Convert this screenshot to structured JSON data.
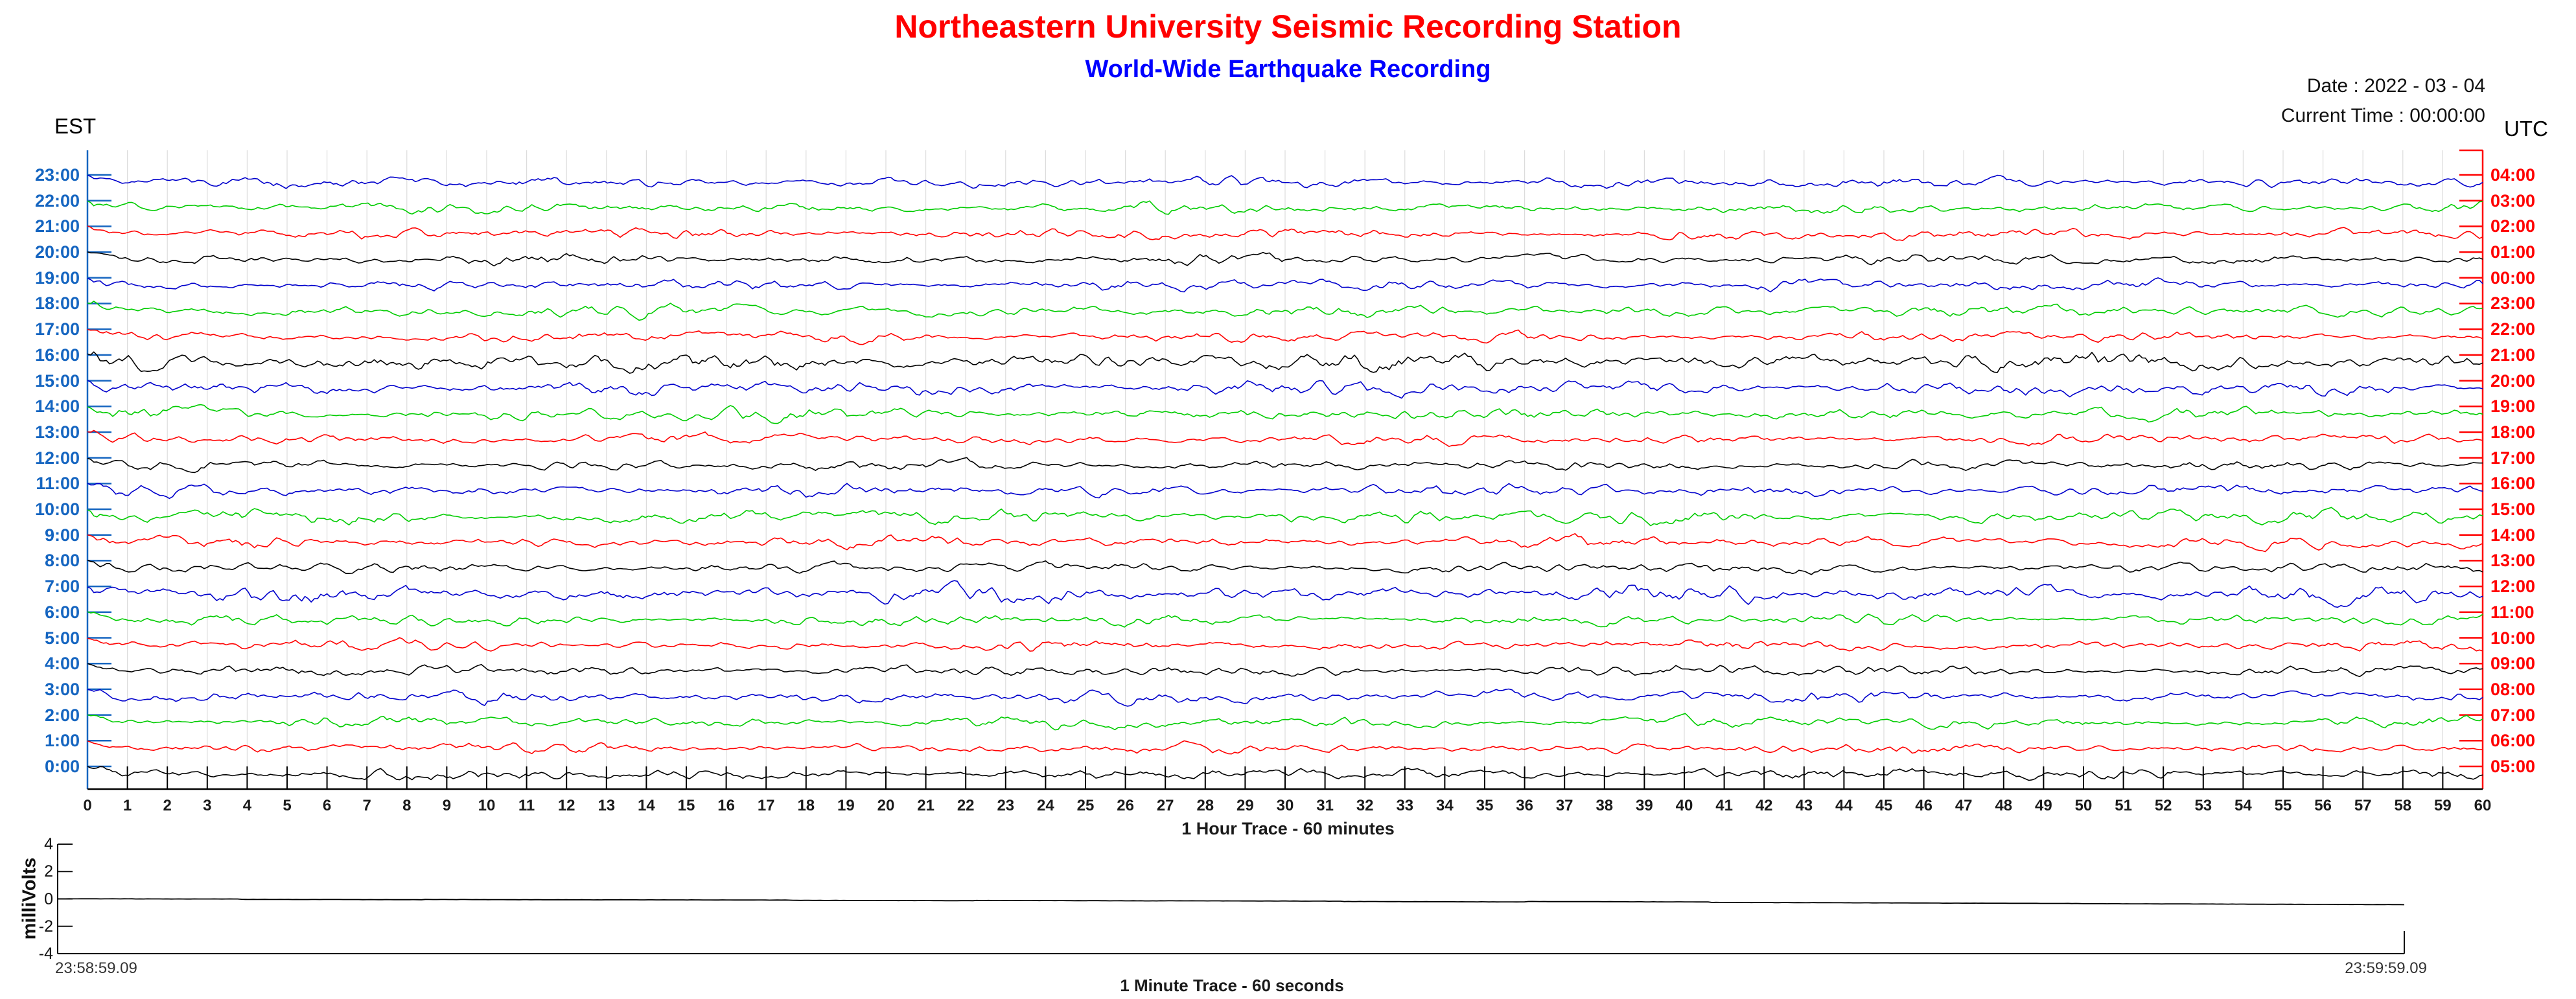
{
  "header": {
    "title": "Northeastern University Seismic Recording Station",
    "subtitle": "World-Wide Earthquake Recording",
    "date_label": "Date : 2022 - 03 - 04",
    "current_time_label": "Current Time : 00:00:00",
    "left_tz": "EST",
    "right_tz": "UTC"
  },
  "colors": {
    "title": "#FF0000",
    "subtitle": "#0000FF",
    "est_axis": "#1565C0",
    "utc_axis": "#FF0000",
    "grid": "#DCDCDC",
    "x_axis": "#000000"
  },
  "chart_data": {
    "type": "line",
    "title": "24-hour helicorder, one trace per hour",
    "x": {
      "label": "1 Hour Trace - 60 minutes",
      "min": 0,
      "max": 60,
      "tick_step": 1,
      "tick_labels": [
        "0",
        "1",
        "2",
        "3",
        "4",
        "5",
        "6",
        "7",
        "8",
        "9",
        "10",
        "11",
        "12",
        "13",
        "14",
        "15",
        "16",
        "17",
        "18",
        "19",
        "20",
        "21",
        "22",
        "23",
        "24",
        "25",
        "26",
        "27",
        "28",
        "29",
        "30",
        "31",
        "32",
        "33",
        "34",
        "35",
        "36",
        "37",
        "38",
        "39",
        "40",
        "41",
        "42",
        "43",
        "44",
        "45",
        "46",
        "47",
        "48",
        "49",
        "50",
        "51",
        "52",
        "53",
        "54",
        "55",
        "56",
        "57",
        "58",
        "59",
        "60"
      ]
    },
    "y_left_label_color": "#1565C0",
    "y_right_label_color": "#FF0000",
    "rows": [
      {
        "est": "23:00",
        "utc": "04:00",
        "color": "#0000CC",
        "amp": 1.0,
        "seed": 11
      },
      {
        "est": "22:00",
        "utc": "03:00",
        "color": "#00CC00",
        "amp": 0.95,
        "seed": 12
      },
      {
        "est": "21:00",
        "utc": "02:00",
        "color": "#FF0000",
        "amp": 1.0,
        "seed": 13
      },
      {
        "est": "20:00",
        "utc": "01:00",
        "color": "#000000",
        "amp": 0.9,
        "seed": 14
      },
      {
        "est": "19:00",
        "utc": "00:00",
        "color": "#0000CC",
        "amp": 1.0,
        "seed": 15
      },
      {
        "est": "18:00",
        "utc": "23:00",
        "color": "#00CC00",
        "amp": 1.05,
        "seed": 16
      },
      {
        "est": "17:00",
        "utc": "22:00",
        "color": "#FF0000",
        "amp": 0.95,
        "seed": 17
      },
      {
        "est": "16:00",
        "utc": "21:00",
        "color": "#000000",
        "amp": 1.6,
        "seed": 18
      },
      {
        "est": "15:00",
        "utc": "20:00",
        "color": "#0000CC",
        "amp": 1.3,
        "seed": 19
      },
      {
        "est": "14:00",
        "utc": "19:00",
        "color": "#00CC00",
        "amp": 1.1,
        "seed": 20
      },
      {
        "est": "13:00",
        "utc": "18:00",
        "color": "#FF0000",
        "amp": 0.95,
        "seed": 21
      },
      {
        "est": "12:00",
        "utc": "17:00",
        "color": "#000000",
        "amp": 0.9,
        "seed": 22
      },
      {
        "est": "11:00",
        "utc": "16:00",
        "color": "#0000CC",
        "amp": 1.05,
        "seed": 23
      },
      {
        "est": "10:00",
        "utc": "15:00",
        "color": "#00CC00",
        "amp": 1.2,
        "seed": 24
      },
      {
        "est": "9:00",
        "utc": "14:00",
        "color": "#FF0000",
        "amp": 1.0,
        "seed": 25
      },
      {
        "est": "8:00",
        "utc": "13:00",
        "color": "#000000",
        "amp": 0.9,
        "seed": 26
      },
      {
        "est": "7:00",
        "utc": "12:00",
        "color": "#0000CC",
        "amp": 1.45,
        "seed": 27
      },
      {
        "est": "6:00",
        "utc": "11:00",
        "color": "#00CC00",
        "amp": 1.0,
        "seed": 28
      },
      {
        "est": "5:00",
        "utc": "10:00",
        "color": "#FF0000",
        "amp": 0.95,
        "seed": 29
      },
      {
        "est": "4:00",
        "utc": "09:00",
        "color": "#000000",
        "amp": 1.0,
        "seed": 30
      },
      {
        "est": "3:00",
        "utc": "08:00",
        "color": "#0000CC",
        "amp": 1.1,
        "seed": 31
      },
      {
        "est": "2:00",
        "utc": "07:00",
        "color": "#00CC00",
        "amp": 1.0,
        "seed": 32
      },
      {
        "est": "1:00",
        "utc": "06:00",
        "color": "#FF0000",
        "amp": 0.9,
        "seed": 33
      },
      {
        "est": "0:00",
        "utc": "05:00",
        "color": "#000000",
        "amp": 1.0,
        "seed": 34
      }
    ],
    "minute_chart": {
      "label": "1 Minute Trace  - 60 seconds",
      "ylabel": "milliVolts",
      "ylim": [
        -4,
        4
      ],
      "yticks": [
        "4",
        "2",
        "0",
        "-2",
        "-4"
      ],
      "start_time": "23:58:59.09",
      "end_time": "23:59:59.09",
      "trace": {
        "color": "#000000",
        "start_mv": 0,
        "end_mv": -0.4
      }
    }
  }
}
